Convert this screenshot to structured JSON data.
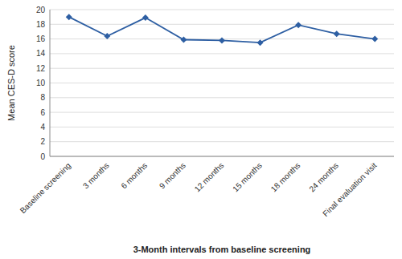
{
  "chart_data": {
    "type": "line",
    "xlabel": "3-Month intervals from baseline screening",
    "ylabel": "Mean CES-D score",
    "categories": [
      "Baseline screening",
      "3 months",
      "6 months",
      "9 months",
      "12 months",
      "15 months",
      "18 months",
      "24 months",
      "Final evaluation visit"
    ],
    "values": [
      19.0,
      16.4,
      18.9,
      15.9,
      15.8,
      15.5,
      17.9,
      16.7,
      16.0
    ],
    "color": "#2E5FA3",
    "marker": "diamond",
    "ylim": [
      0,
      20
    ],
    "yticks": [
      0,
      2,
      4,
      6,
      8,
      10,
      12,
      14,
      16,
      18,
      20
    ],
    "grid": true
  }
}
